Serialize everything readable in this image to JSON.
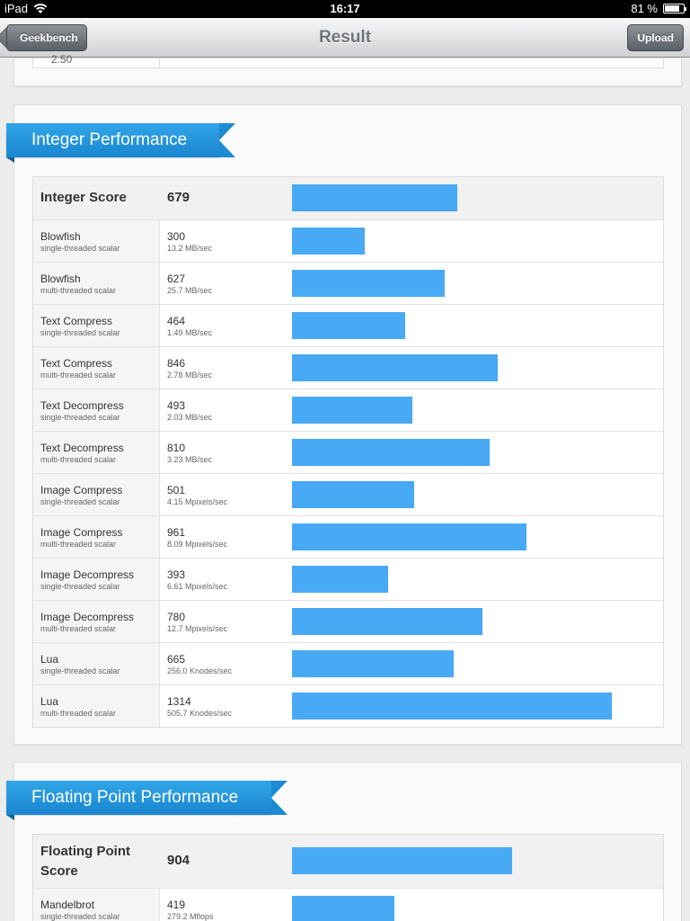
{
  "status_bar": {
    "device": "iPad",
    "time": "16:17",
    "battery": "81 %",
    "battery_level": 0.81
  },
  "nav": {
    "title": "Result",
    "back_label": "Geekbench",
    "upload_label": "Upload"
  },
  "top_card": {
    "cut_text": "2.50"
  },
  "integer": {
    "title": "Integer Performance",
    "score_label": "Integer Score",
    "score": "679",
    "score_value": 679,
    "rows": [
      {
        "name": "Blowfish",
        "sub": "single-threaded scalar",
        "score": "300",
        "rate": "13.2 MB/sec",
        "value": 300
      },
      {
        "name": "Blowfish",
        "sub": "multi-threaded scalar",
        "score": "627",
        "rate": "25.7 MB/sec",
        "value": 627
      },
      {
        "name": "Text Compress",
        "sub": "single-threaded scalar",
        "score": "464",
        "rate": "1.49 MB/sec",
        "value": 464
      },
      {
        "name": "Text Compress",
        "sub": "multi-threaded scalar",
        "score": "846",
        "rate": "2.78 MB/sec",
        "value": 846
      },
      {
        "name": "Text Decompress",
        "sub": "single-threaded scalar",
        "score": "493",
        "rate": "2.03 MB/sec",
        "value": 493
      },
      {
        "name": "Text Decompress",
        "sub": "multi-threaded scalar",
        "score": "810",
        "rate": "3.23 MB/sec",
        "value": 810
      },
      {
        "name": "Image Compress",
        "sub": "single-threaded scalar",
        "score": "501",
        "rate": "4.15 Mpixels/sec",
        "value": 501
      },
      {
        "name": "Image Compress",
        "sub": "multi-threaded scalar",
        "score": "961",
        "rate": "8.09 Mpixels/sec",
        "value": 961
      },
      {
        "name": "Image Decompress",
        "sub": "single-threaded scalar",
        "score": "393",
        "rate": "6.61 Mpixels/sec",
        "value": 393
      },
      {
        "name": "Image Decompress",
        "sub": "multi-threaded scalar",
        "score": "780",
        "rate": "12.7 Mpixels/sec",
        "value": 780
      },
      {
        "name": "Lua",
        "sub": "single-threaded scalar",
        "score": "665",
        "rate": "256.0 Knodes/sec",
        "value": 665
      },
      {
        "name": "Lua",
        "sub": "multi-threaded scalar",
        "score": "1314",
        "rate": "505.7 Knodes/sec",
        "value": 1314
      }
    ]
  },
  "floating": {
    "title": "Floating Point Performance",
    "score_label": "Floating Point Score",
    "score": "904",
    "score_value": 904,
    "rows": [
      {
        "name": "Mandelbrot",
        "sub": "single-threaded scalar",
        "score": "419",
        "rate": "279.2 Mflops",
        "value": 419
      }
    ]
  },
  "bar_scale_max": 1530,
  "colors": {
    "bar": "#48a9f5",
    "ribbon": "#1d8bd3"
  }
}
